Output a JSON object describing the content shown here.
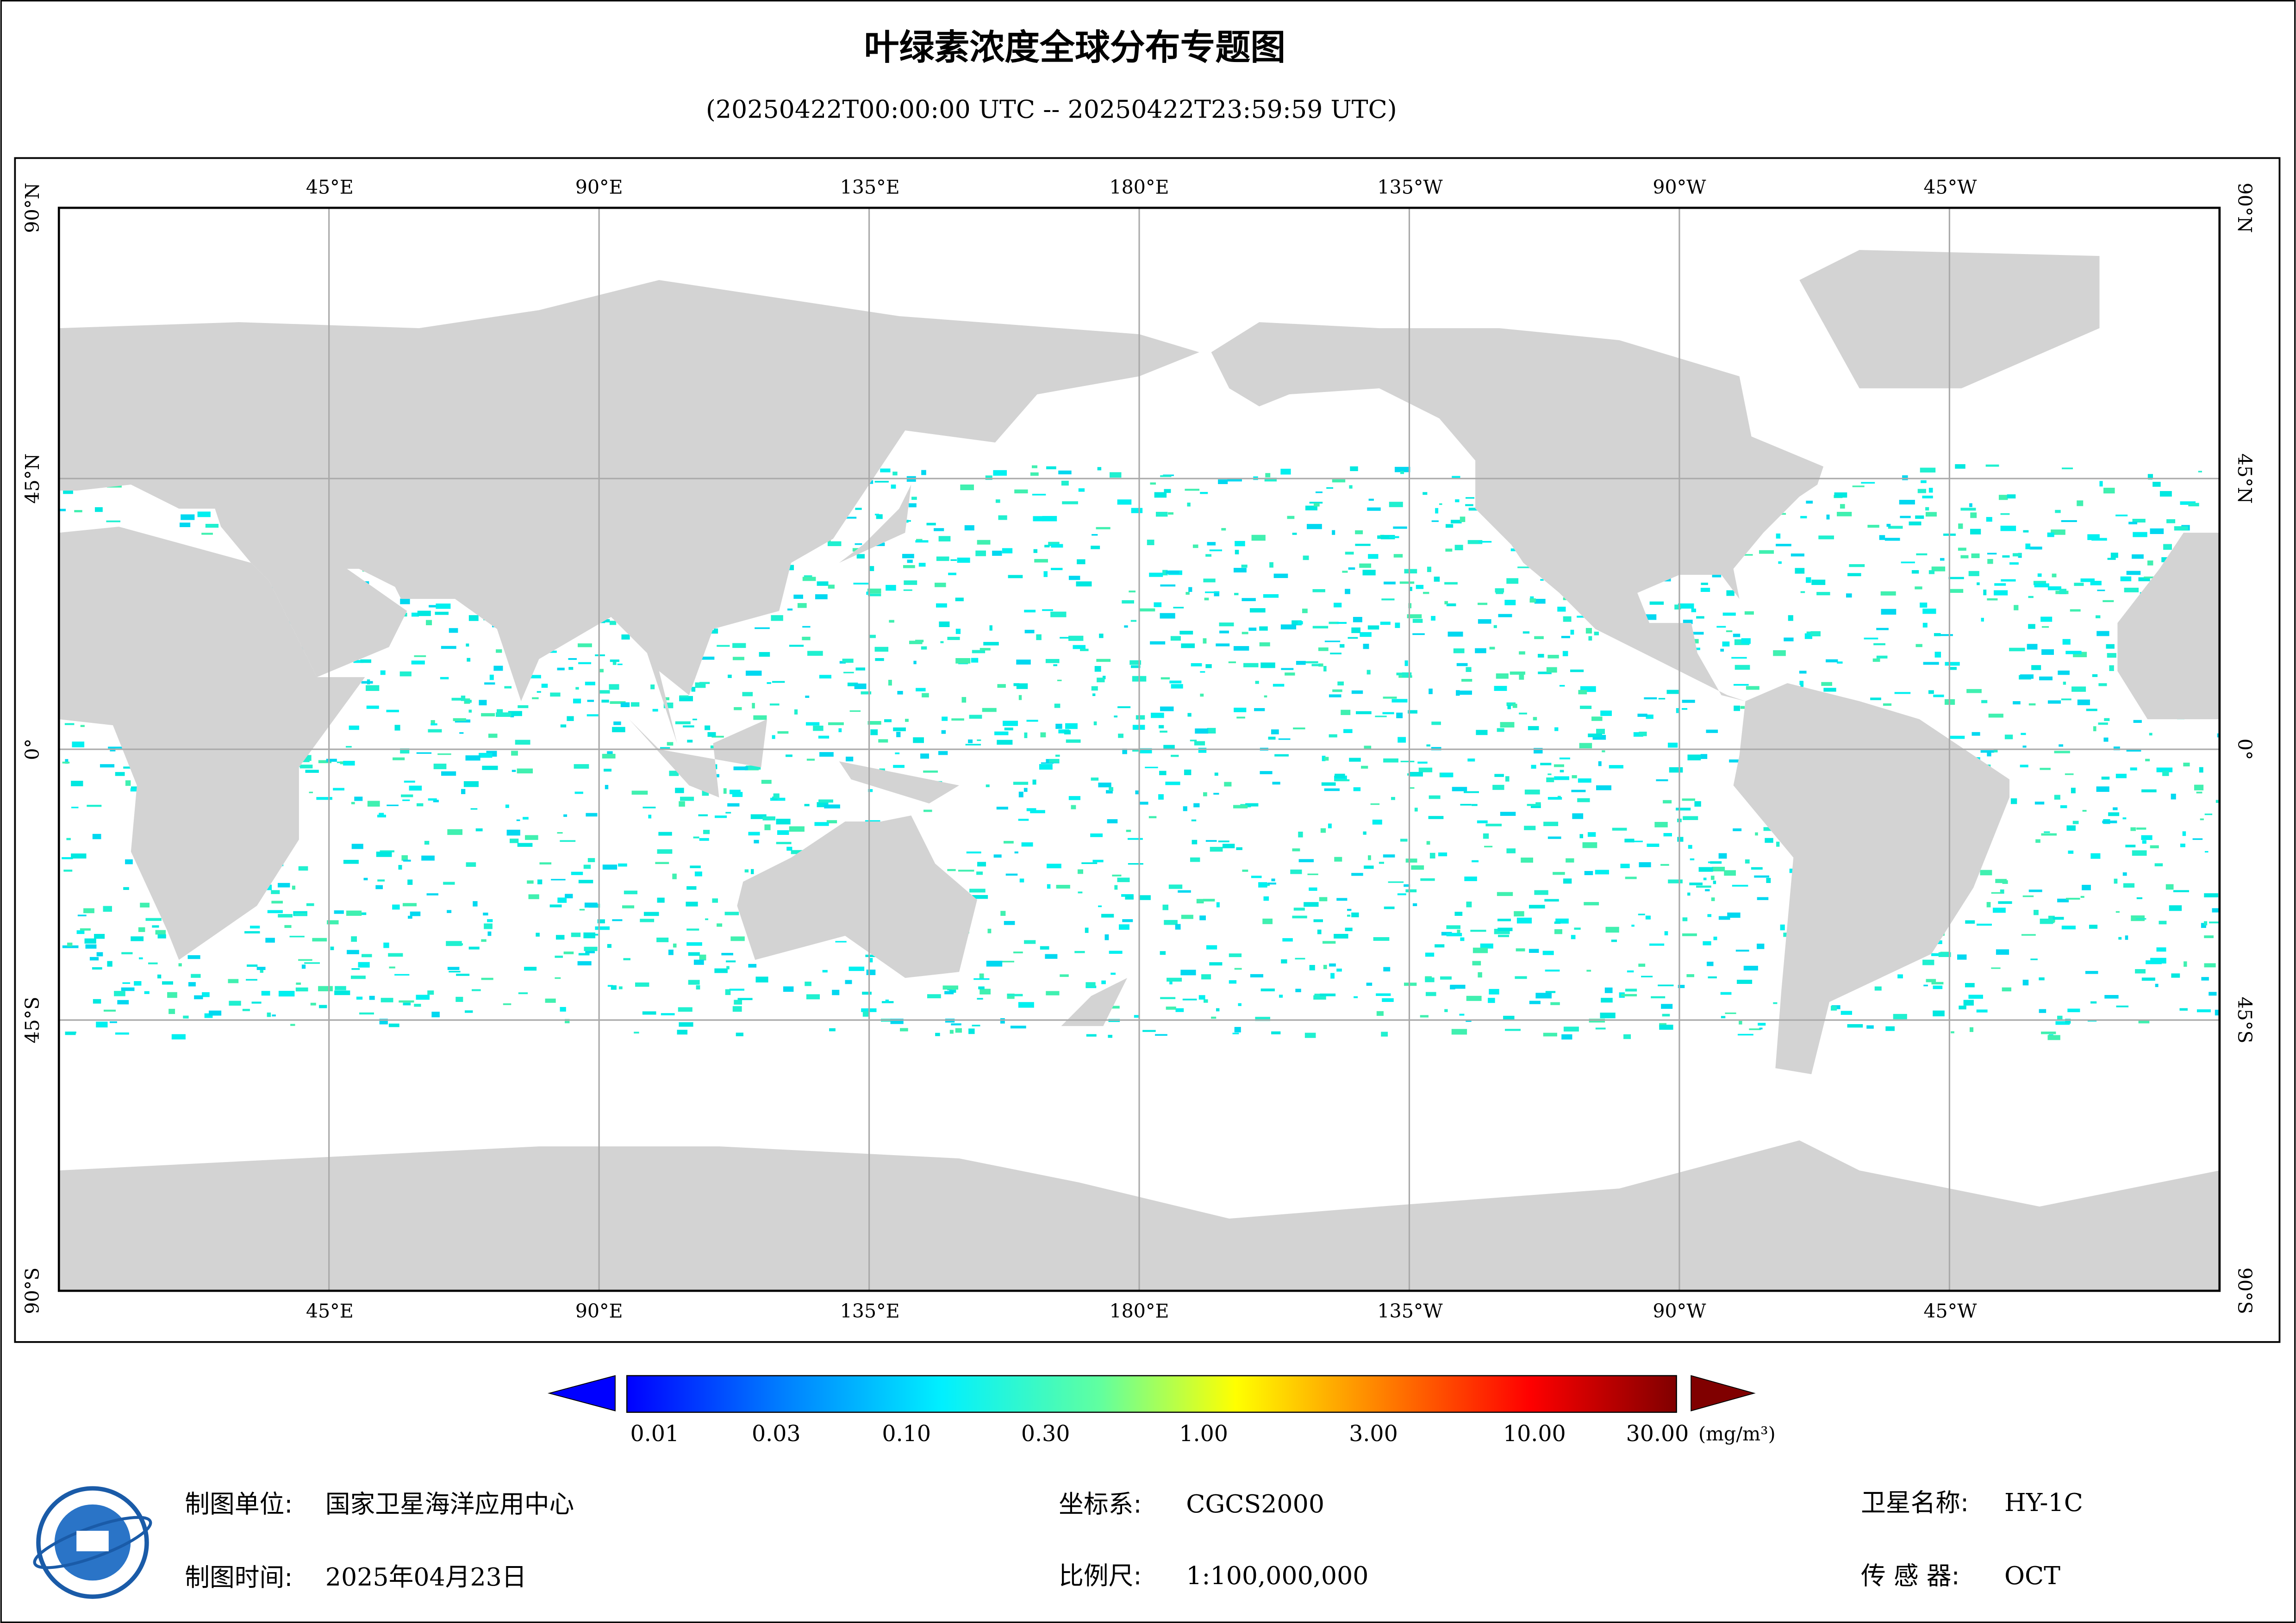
{
  "header": {
    "title": "叶绿素浓度全球分布专题图",
    "subtitle": "(20250422T00:00:00 UTC -- 20250422T23:59:59 UTC)"
  },
  "map": {
    "lon_labels": [
      "45°E",
      "90°E",
      "135°E",
      "180°E",
      "135°W",
      "90°W",
      "45°W"
    ],
    "lat_labels": [
      "90°N",
      "45°N",
      "0°",
      "45°S",
      "90°S"
    ]
  },
  "colorbar": {
    "ticks": [
      "0.01",
      "0.03",
      "0.10",
      "0.30",
      "1.00",
      "3.00",
      "10.00",
      "30.00"
    ],
    "unit": "(mg/m³)"
  },
  "footer": {
    "unit_label": "制图单位:",
    "unit_value": "国家卫星海洋应用中心",
    "time_label": "制图时间:",
    "time_value": "2025年04月23日",
    "crs_label": "坐标系:",
    "crs_value": "CGCS2000",
    "scale_label": "比例尺:",
    "scale_value": "1:100,000,000",
    "satellite_label": "卫星名称:",
    "satellite_value": "HY-1C",
    "sensor_label": "传 感 器:",
    "sensor_value": "OCT"
  }
}
